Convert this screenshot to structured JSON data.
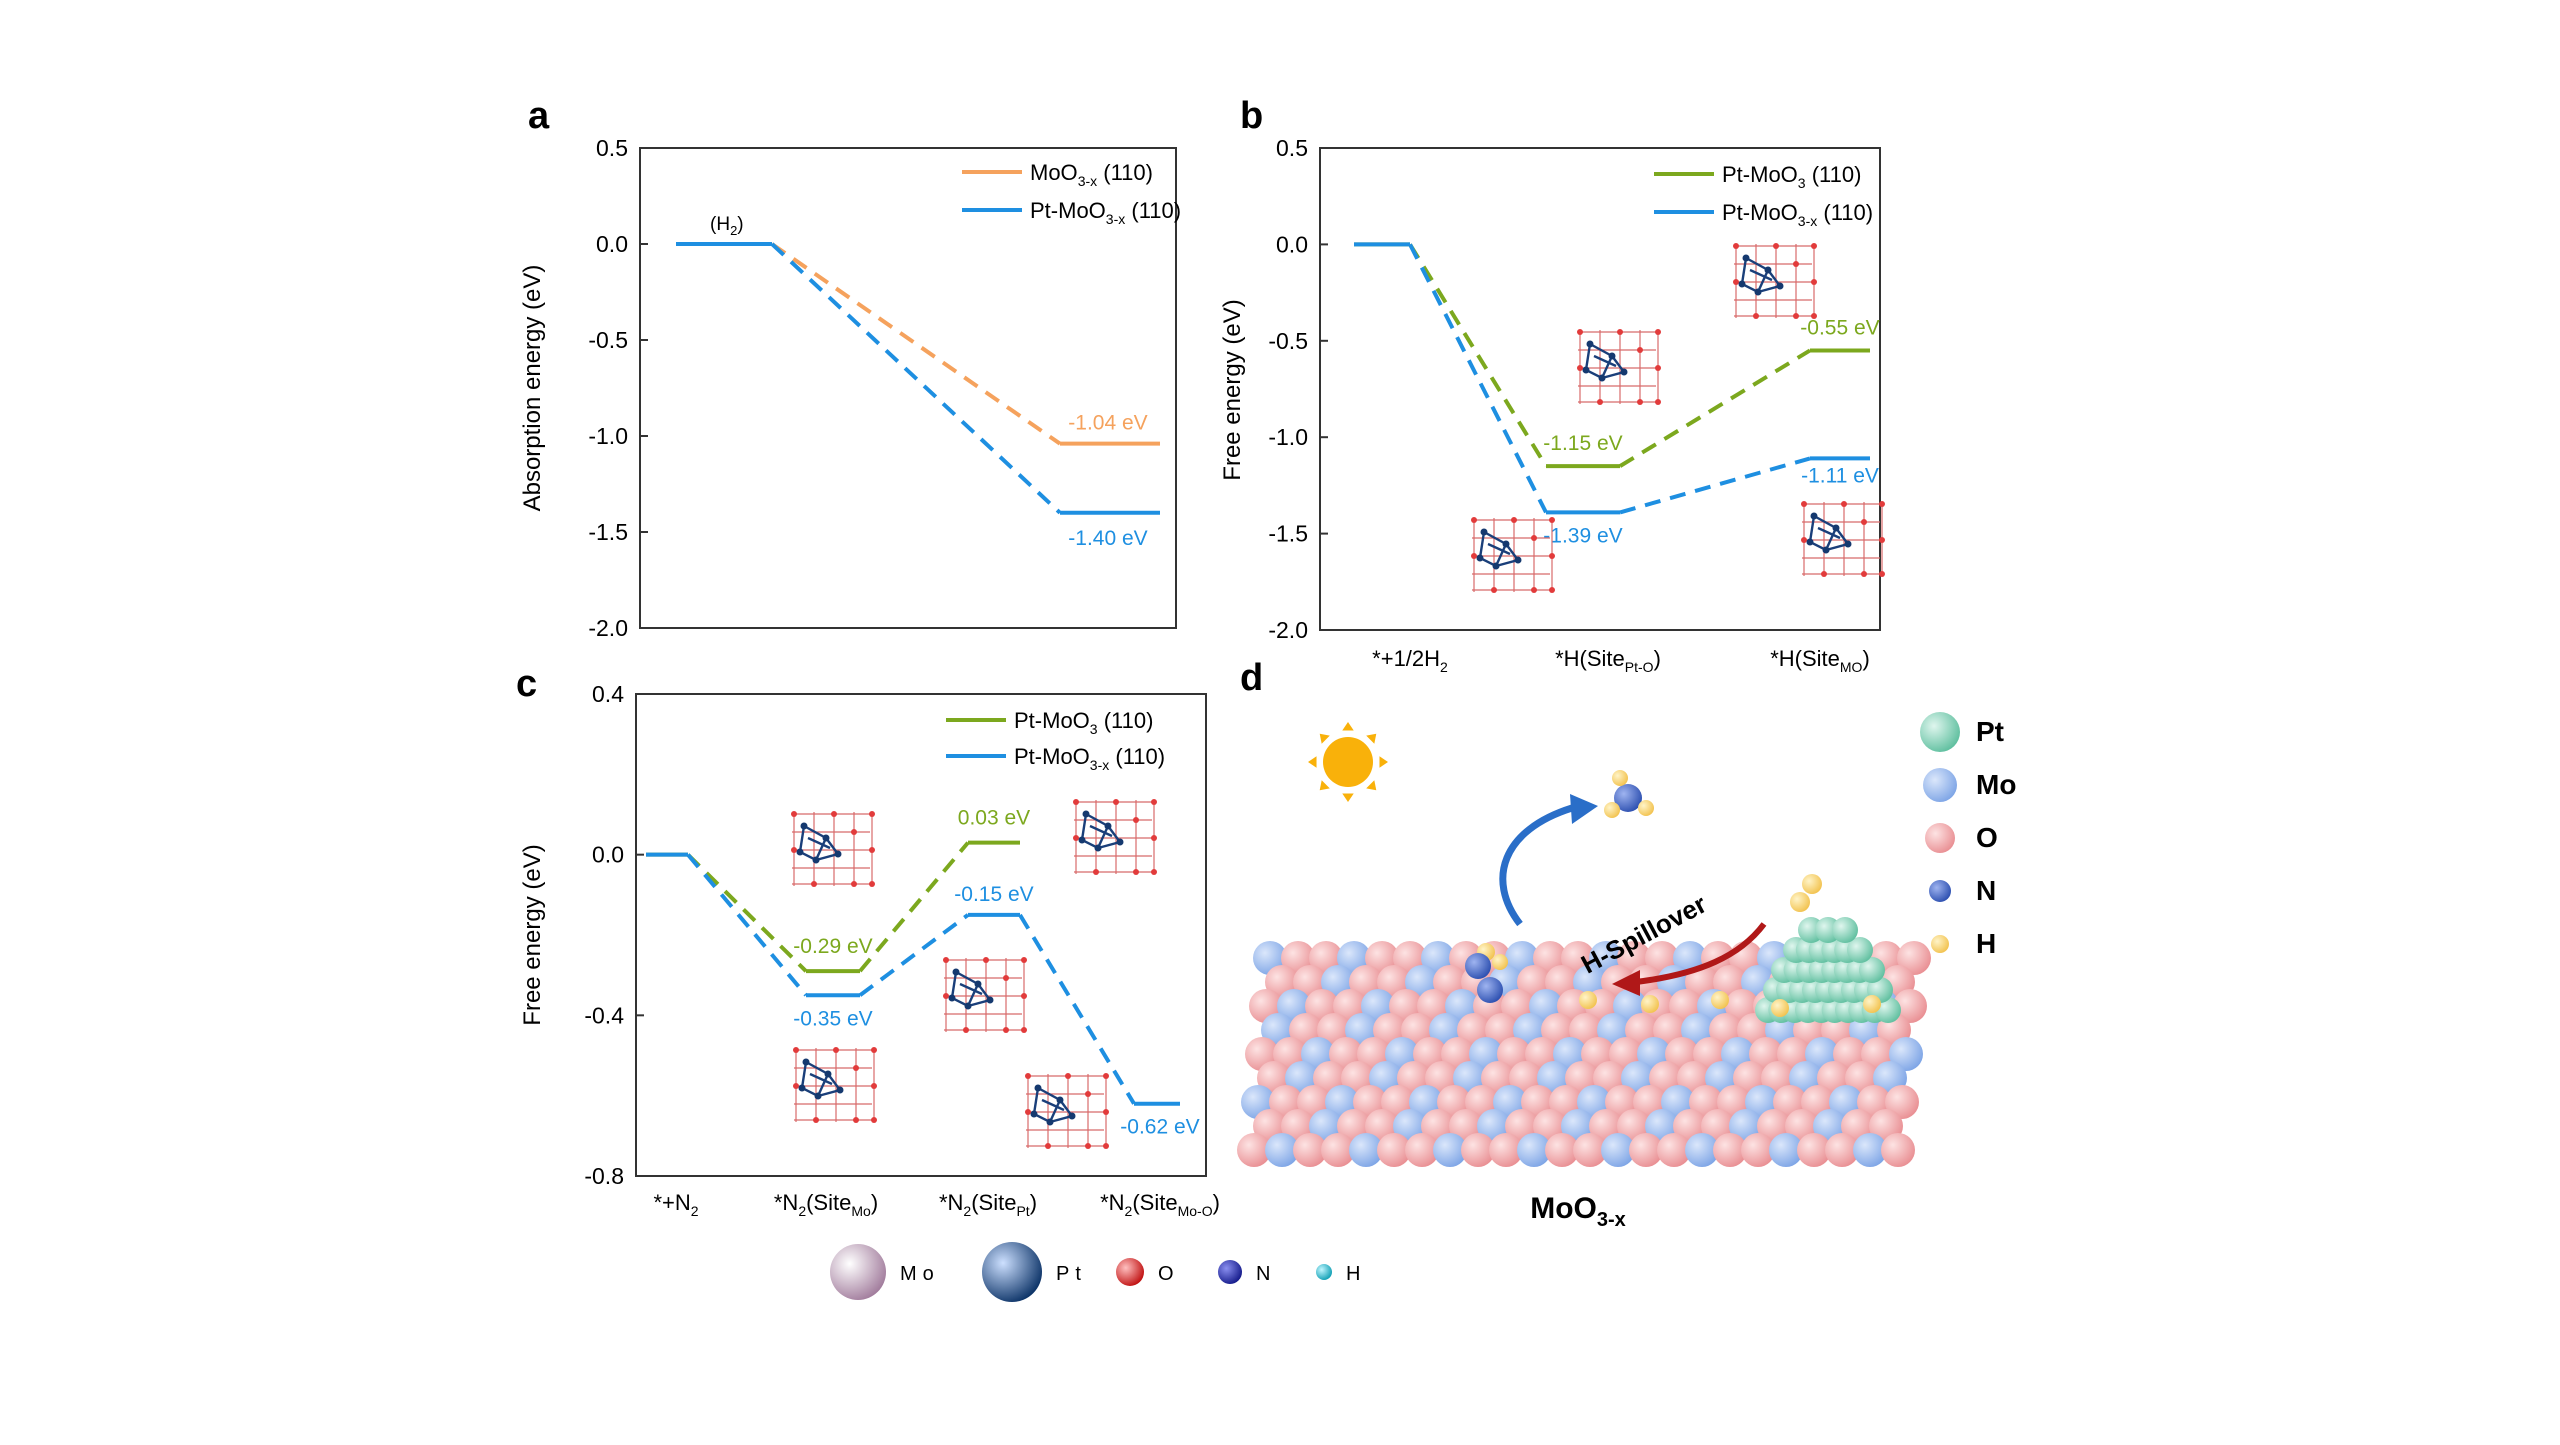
{
  "colors": {
    "orange": "#F5A25D",
    "blue": "#1E8FE1",
    "green": "#7CA81E",
    "atom_o": "#F4A8A8",
    "atom_mo": "#8EB2EC",
    "atom_pt": "#7FD3B8",
    "atom_n": "#3C64C8",
    "atom_h": "#F7D36A",
    "arrow_red": "#B01818",
    "arrow_blue": "#2A6EC8",
    "sun": "#F9B10A"
  },
  "panel_a": {
    "label": "a",
    "chart_data": {
      "type": "line",
      "ylabel": "Absorption energy (eV)",
      "ylim": [
        -2.0,
        0.5
      ],
      "yticks": [
        "0.5",
        "0.0",
        "-0.5",
        "-1.0",
        "-1.5",
        "-2.0"
      ],
      "ytick_values": [
        0.5,
        0.0,
        -0.5,
        -1.0,
        -1.5,
        -2.0
      ],
      "annotation_h2": {
        "main": "(H",
        "sub": "2",
        "end": ")"
      },
      "series": [
        {
          "name_main": "MoO",
          "name_sub": "3-x",
          "name_end": " (110)",
          "color": "orange",
          "levels": [
            0.0,
            -1.04
          ],
          "label": "-1.04 eV"
        },
        {
          "name_main": "Pt-MoO",
          "name_sub": "3-x",
          "name_end": " (110)",
          "color": "blue",
          "levels": [
            0.0,
            -1.4
          ],
          "label": "-1.40 eV"
        }
      ]
    }
  },
  "panel_b": {
    "label": "b",
    "chart_data": {
      "type": "line",
      "ylabel": "Free energy (eV)",
      "ylim": [
        -2.0,
        0.5
      ],
      "yticks": [
        "0.5",
        "0.0",
        "-0.5",
        "-1.0",
        "-1.5",
        "-2.0"
      ],
      "ytick_values": [
        0.5,
        0.0,
        -0.5,
        -1.0,
        -1.5,
        -2.0
      ],
      "categories": [
        {
          "main": "*+1/2H",
          "sub": "2",
          "end": ""
        },
        {
          "main": "*H(Site",
          "sub": "Pt-O",
          "end": ")"
        },
        {
          "main": "*H(Site",
          "sub": "MO",
          "end": ")"
        }
      ],
      "series": [
        {
          "name_main": "Pt-MoO",
          "name_sub": "3",
          "name_end": " (110)",
          "color": "green",
          "levels": [
            0.0,
            -1.15,
            -0.55
          ],
          "labels": [
            "",
            "-1.15 eV",
            "-0.55 eV"
          ]
        },
        {
          "name_main": "Pt-MoO",
          "name_sub": "3-x",
          "name_end": " (110)",
          "color": "blue",
          "levels": [
            0.0,
            -1.39,
            -1.11
          ],
          "labels": [
            "",
            "-1.39 eV",
            "-1.11 eV"
          ]
        }
      ]
    }
  },
  "panel_c": {
    "label": "c",
    "chart_data": {
      "type": "line",
      "ylabel": "Free energy (eV)",
      "ylim": [
        -0.8,
        0.4
      ],
      "yticks": [
        "0.4",
        "0.0",
        "-0.4",
        "-0.8"
      ],
      "ytick_values": [
        0.4,
        0.0,
        -0.4,
        -0.8
      ],
      "categories": [
        {
          "main": "*+N",
          "sub": "2",
          "end": ""
        },
        {
          "main": "*N",
          "sub": "2",
          "end": "(Site",
          "sub2": "Mo",
          "end2": ")"
        },
        {
          "main": "*N",
          "sub": "2",
          "end": "(Site",
          "sub2": "Pt",
          "end2": ")"
        },
        {
          "main": "*N",
          "sub": "2",
          "end": "(Site",
          "sub2": "Mo-O",
          "end2": ")"
        }
      ],
      "series": [
        {
          "name_main": "Pt-MoO",
          "name_sub": "3",
          "name_end": " (110)",
          "color": "green",
          "levels": [
            0.0,
            -0.29,
            0.03
          ],
          "labels": [
            "",
            "-0.29 eV",
            "0.03 eV"
          ]
        },
        {
          "name_main": "Pt-MoO",
          "name_sub": "3-x",
          "name_end": " (110)",
          "color": "blue",
          "levels": [
            0.0,
            -0.35,
            -0.15,
            -0.62
          ],
          "labels": [
            "",
            "-0.35 eV",
            "-0.15 eV",
            "-0.62 eV"
          ]
        }
      ]
    }
  },
  "panel_d": {
    "label": "d",
    "legend": [
      {
        "label": "Pt",
        "color": "atom_pt"
      },
      {
        "label": "Mo",
        "color": "atom_mo"
      },
      {
        "label": "O",
        "color": "atom_o"
      },
      {
        "label": "N",
        "color": "atom_n"
      },
      {
        "label": "H",
        "color": "atom_h"
      }
    ],
    "spillover_label": "H-Spillover",
    "substrate_main": "MoO",
    "substrate_sub": "3-x"
  },
  "atom_legend": [
    {
      "label": "Mo",
      "color": "#C9A8C2"
    },
    {
      "label": "Pt",
      "color": "#1C4E8A"
    },
    {
      "label": "O",
      "color": "#E52A2A"
    },
    {
      "label": "N",
      "color": "#2A2FB0"
    },
    {
      "label": "H",
      "color": "#22C4D8"
    }
  ]
}
